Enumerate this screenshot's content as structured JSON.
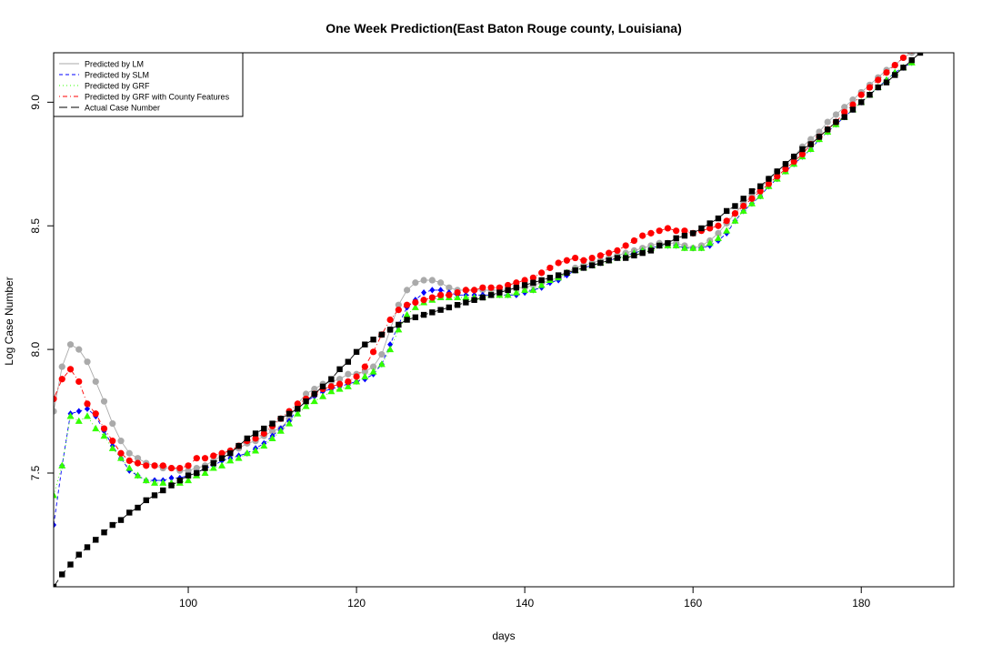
{
  "chart_data": {
    "type": "scatter",
    "title": "One Week Prediction(East Baton Rouge county, Louisiana)",
    "xlabel": "days",
    "ylabel": "Log Case Number",
    "xlim": [
      84,
      191
    ],
    "ylim": [
      7.04,
      9.2
    ],
    "x_ticks": [
      100,
      120,
      140,
      160,
      180
    ],
    "y_ticks": [
      7.5,
      8.0,
      8.5,
      9.0
    ],
    "x_tick_labels": [
      "100",
      "120",
      "140",
      "160",
      "180"
    ],
    "y_tick_labels": [
      "7.5",
      "8.0",
      "8.5",
      "9.0"
    ],
    "grid": false,
    "legend_position": "top-left",
    "x_start": 84,
    "series": [
      {
        "name": "Predicted by LM",
        "color": "#aaaaaa",
        "line": "solid",
        "marker": "circle",
        "values": [
          7.75,
          7.93,
          8.02,
          8.0,
          7.95,
          7.87,
          7.79,
          7.7,
          7.63,
          7.58,
          7.56,
          7.54,
          7.53,
          7.52,
          7.52,
          7.51,
          7.51,
          7.52,
          7.53,
          7.55,
          7.57,
          7.59,
          7.6,
          7.62,
          7.63,
          7.65,
          7.67,
          7.68,
          7.72,
          7.78,
          7.82,
          7.84,
          7.86,
          7.87,
          7.88,
          7.9,
          7.9,
          7.91,
          7.93,
          7.98,
          8.08,
          8.18,
          8.24,
          8.27,
          8.28,
          8.28,
          8.27,
          8.25,
          8.24,
          8.24,
          8.24,
          8.24,
          8.24,
          8.24,
          8.24,
          8.25,
          8.25,
          8.26,
          8.27,
          8.28,
          8.29,
          8.31,
          8.33,
          8.34,
          8.35,
          8.36,
          8.37,
          8.38,
          8.39,
          8.4,
          8.41,
          8.42,
          8.43,
          8.43,
          8.43,
          8.42,
          8.41,
          8.42,
          8.44,
          8.47,
          8.51,
          8.55,
          8.59,
          8.62,
          8.65,
          8.69,
          8.72,
          8.75,
          8.78,
          8.82,
          8.85,
          8.88,
          8.92,
          8.95,
          8.98,
          9.01,
          9.04,
          9.07,
          9.1,
          9.13,
          9.15,
          9.18,
          9.2
        ]
      },
      {
        "name": "Predicted by SLM",
        "color": "#0000ff",
        "line": "dashed",
        "marker": "diamond",
        "values": [
          7.29,
          7.53,
          7.74,
          7.75,
          7.76,
          7.73,
          7.67,
          7.61,
          7.56,
          7.51,
          7.49,
          7.47,
          7.47,
          7.47,
          7.48,
          7.48,
          7.49,
          7.5,
          7.52,
          7.53,
          7.55,
          7.56,
          7.57,
          7.58,
          7.6,
          7.62,
          7.65,
          7.68,
          7.71,
          7.76,
          7.79,
          7.81,
          7.83,
          7.84,
          7.85,
          7.86,
          7.87,
          7.88,
          7.9,
          7.94,
          8.02,
          8.1,
          8.17,
          8.2,
          8.23,
          8.24,
          8.24,
          8.23,
          8.22,
          8.22,
          8.22,
          8.22,
          8.22,
          8.22,
          8.22,
          8.22,
          8.23,
          8.24,
          8.25,
          8.27,
          8.28,
          8.3,
          8.32,
          8.33,
          8.34,
          8.35,
          8.36,
          8.37,
          8.38,
          8.39,
          8.4,
          8.41,
          8.42,
          8.42,
          8.42,
          8.41,
          8.41,
          8.41,
          8.42,
          8.44,
          8.47,
          8.52,
          8.56,
          8.59,
          8.62,
          8.66,
          8.69,
          8.72,
          8.75,
          8.78,
          8.81,
          8.85,
          8.88,
          8.91,
          8.94,
          8.97,
          9.0,
          9.03,
          9.06,
          9.09,
          9.12,
          9.14,
          9.16
        ]
      },
      {
        "name": "Predicted by GRF",
        "color": "#33ff00",
        "line": "dotted",
        "marker": "triangle",
        "values": [
          7.41,
          7.53,
          7.73,
          7.71,
          7.73,
          7.68,
          7.65,
          7.6,
          7.56,
          7.52,
          7.49,
          7.47,
          7.46,
          7.46,
          7.46,
          7.46,
          7.47,
          7.49,
          7.5,
          7.52,
          7.53,
          7.55,
          7.56,
          7.58,
          7.59,
          7.61,
          7.64,
          7.67,
          7.7,
          7.74,
          7.77,
          7.79,
          7.81,
          7.83,
          7.84,
          7.85,
          7.87,
          7.89,
          7.91,
          7.94,
          8.0,
          8.08,
          8.14,
          8.17,
          8.19,
          8.2,
          8.21,
          8.21,
          8.21,
          8.21,
          8.21,
          8.21,
          8.22,
          8.22,
          8.22,
          8.23,
          8.24,
          8.24,
          8.26,
          8.28,
          8.29,
          8.31,
          8.32,
          8.33,
          8.34,
          8.35,
          8.36,
          8.37,
          8.38,
          8.39,
          8.4,
          8.41,
          8.42,
          8.42,
          8.42,
          8.41,
          8.41,
          8.41,
          8.43,
          8.45,
          8.48,
          8.52,
          8.56,
          8.59,
          8.62,
          8.66,
          8.69,
          8.72,
          8.75,
          8.78,
          8.81,
          8.85,
          8.88,
          8.91,
          8.94,
          8.97,
          9.0,
          9.03,
          9.06,
          9.09,
          9.12,
          9.14,
          9.16
        ]
      },
      {
        "name": "Predicted by GRF with County Features",
        "color": "#ff0000",
        "line": "dotdash",
        "marker": "circle",
        "values": [
          7.8,
          7.88,
          7.92,
          7.87,
          7.78,
          7.74,
          7.68,
          7.63,
          7.58,
          7.55,
          7.54,
          7.53,
          7.53,
          7.53,
          7.52,
          7.52,
          7.53,
          7.56,
          7.56,
          7.57,
          7.58,
          7.59,
          7.61,
          7.63,
          7.64,
          7.66,
          7.69,
          7.72,
          7.75,
          7.78,
          7.8,
          7.82,
          7.84,
          7.85,
          7.86,
          7.87,
          7.89,
          7.93,
          7.99,
          8.06,
          8.12,
          8.16,
          8.18,
          8.19,
          8.2,
          8.21,
          8.22,
          8.22,
          8.23,
          8.24,
          8.24,
          8.25,
          8.25,
          8.25,
          8.26,
          8.27,
          8.28,
          8.29,
          8.31,
          8.33,
          8.35,
          8.36,
          8.37,
          8.36,
          8.37,
          8.38,
          8.39,
          8.4,
          8.42,
          8.44,
          8.46,
          8.47,
          8.48,
          8.49,
          8.48,
          8.48,
          8.47,
          8.48,
          8.49,
          8.5,
          8.52,
          8.55,
          8.58,
          8.61,
          8.64,
          8.67,
          8.7,
          8.73,
          8.76,
          8.79,
          8.83,
          8.86,
          8.89,
          8.92,
          8.96,
          8.99,
          9.03,
          9.06,
          9.09,
          9.12,
          9.15,
          9.18,
          9.21
        ]
      },
      {
        "name": "Actual Case Number",
        "color": "#000000",
        "line": "longdash",
        "marker": "square",
        "values": [
          7.04,
          7.09,
          7.13,
          7.17,
          7.2,
          7.23,
          7.26,
          7.29,
          7.31,
          7.34,
          7.36,
          7.39,
          7.41,
          7.43,
          7.45,
          7.47,
          7.49,
          7.5,
          7.52,
          7.54,
          7.56,
          7.58,
          7.61,
          7.64,
          7.66,
          7.68,
          7.7,
          7.72,
          7.74,
          7.76,
          7.79,
          7.82,
          7.85,
          7.88,
          7.92,
          7.95,
          7.99,
          8.02,
          8.04,
          8.06,
          8.08,
          8.1,
          8.12,
          8.13,
          8.14,
          8.15,
          8.16,
          8.17,
          8.18,
          8.19,
          8.2,
          8.21,
          8.22,
          8.23,
          8.24,
          8.25,
          8.26,
          8.27,
          8.28,
          8.29,
          8.3,
          8.31,
          8.32,
          8.33,
          8.34,
          8.35,
          8.36,
          8.37,
          8.37,
          8.38,
          8.39,
          8.4,
          8.42,
          8.43,
          8.45,
          8.46,
          8.47,
          8.49,
          8.51,
          8.53,
          8.56,
          8.58,
          8.61,
          8.64,
          8.66,
          8.69,
          8.72,
          8.75,
          8.78,
          8.81,
          8.83,
          8.86,
          8.89,
          8.92,
          8.94,
          8.97,
          9.0,
          9.03,
          9.06,
          9.08,
          9.11,
          9.14,
          9.17,
          9.2
        ]
      }
    ]
  }
}
